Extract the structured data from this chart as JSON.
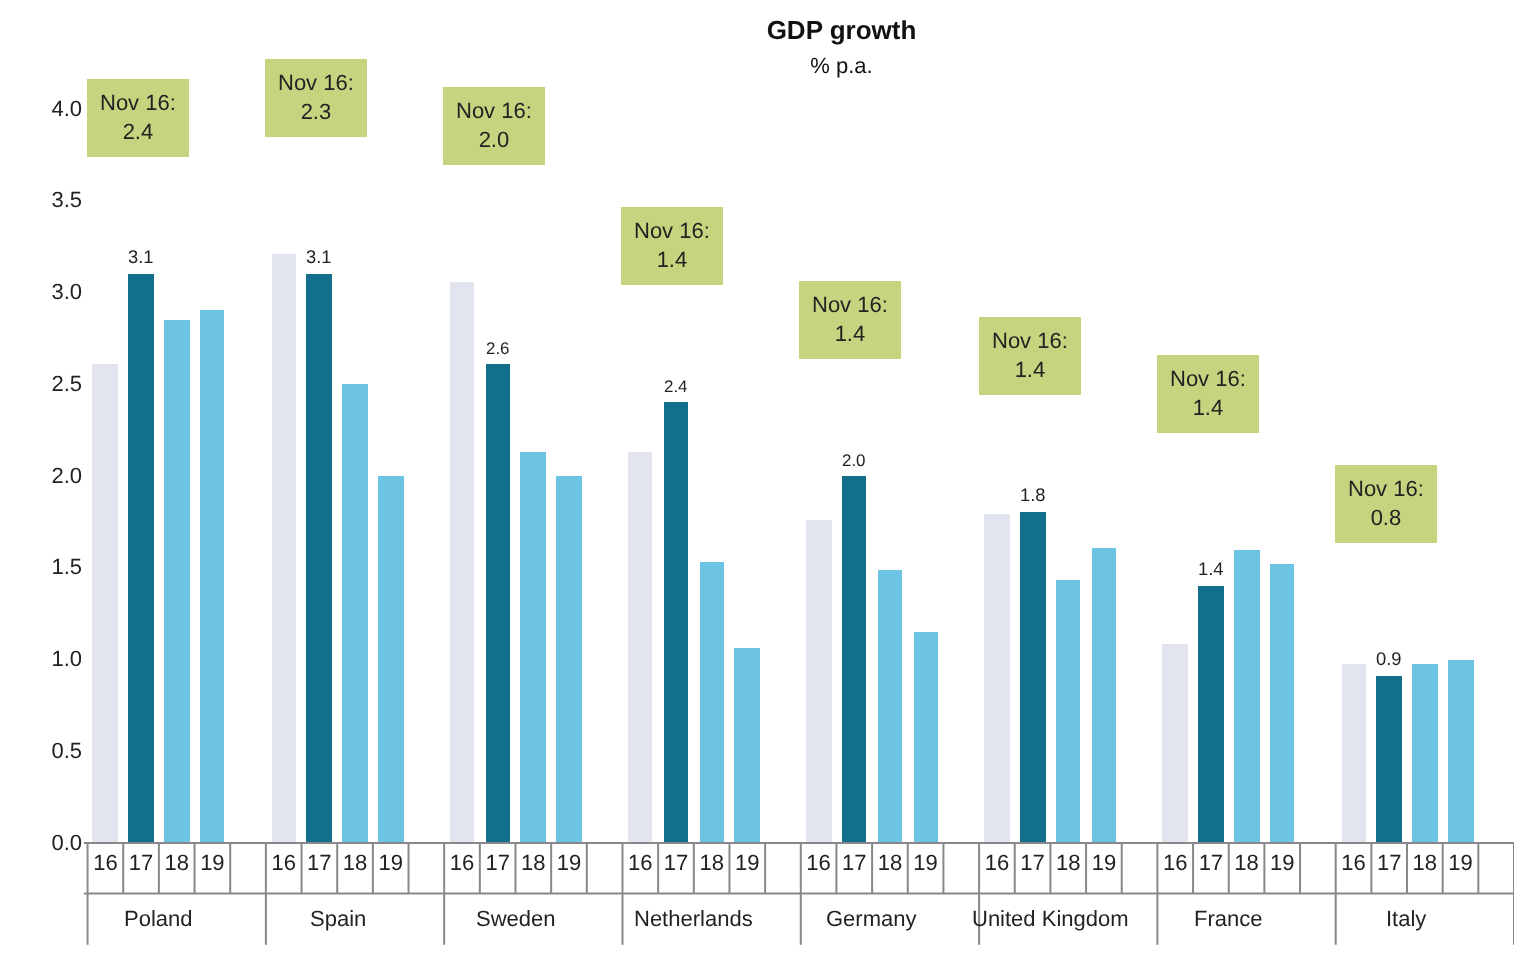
{
  "chart_data": {
    "type": "bar",
    "title": "GDP growth",
    "subtitle": "% p.a.",
    "categories": [
      "Poland",
      "Spain",
      "Sweden",
      "Netherlands",
      "Germany",
      "United Kingdom",
      "France",
      "Italy"
    ],
    "series": [
      {
        "name": "16",
        "color": "#e3e5ee",
        "values": [
          2.6,
          3.2,
          3.05,
          2.13,
          1.76,
          1.79,
          1.08,
          0.97
        ]
      },
      {
        "name": "17",
        "color": "#12708b",
        "values": [
          3.1,
          3.1,
          2.6,
          2.4,
          2.0,
          1.8,
          1.4,
          0.9
        ],
        "value_labels": [
          "3.1",
          "3.1",
          "2.6",
          "2.4",
          "2.0",
          "1.8",
          "1.4",
          "0.9"
        ]
      },
      {
        "name": "18",
        "color": "#6cc4e2",
        "values": [
          2.85,
          2.5,
          2.13,
          1.53,
          1.48,
          1.43,
          1.59,
          0.97
        ]
      },
      {
        "name": "19",
        "color": "#6cc4e2",
        "values": [
          2.9,
          2.0,
          2.0,
          1.06,
          1.14,
          1.6,
          1.52,
          0.99
        ]
      }
    ],
    "ylim": [
      0,
      4.0
    ],
    "yticks": [
      {
        "value": 0,
        "label": "0.0"
      },
      {
        "value": 0.5,
        "label": "0.5"
      },
      {
        "value": 1,
        "label": "1.0"
      },
      {
        "value": 1.5,
        "label": "1.5"
      },
      {
        "value": 2,
        "label": "2.0"
      },
      {
        "value": 2.5,
        "label": "2.5"
      },
      {
        "value": 3,
        "label": "3.0"
      },
      {
        "value": 3.5,
        "label": "3.5"
      },
      {
        "value": 4,
        "label": "4.0"
      }
    ],
    "grid": false,
    "legend": false,
    "annotations": [
      "Nov 16:\n2.4",
      "Nov 16:\n2.3",
      "Nov 16:\n2.0",
      "Nov 16:\n1.4",
      "Nov 16:\n1.4",
      "Nov 16:\n1.4",
      "Nov 16:\n1.4",
      "Nov 16:\n0.8"
    ]
  }
}
